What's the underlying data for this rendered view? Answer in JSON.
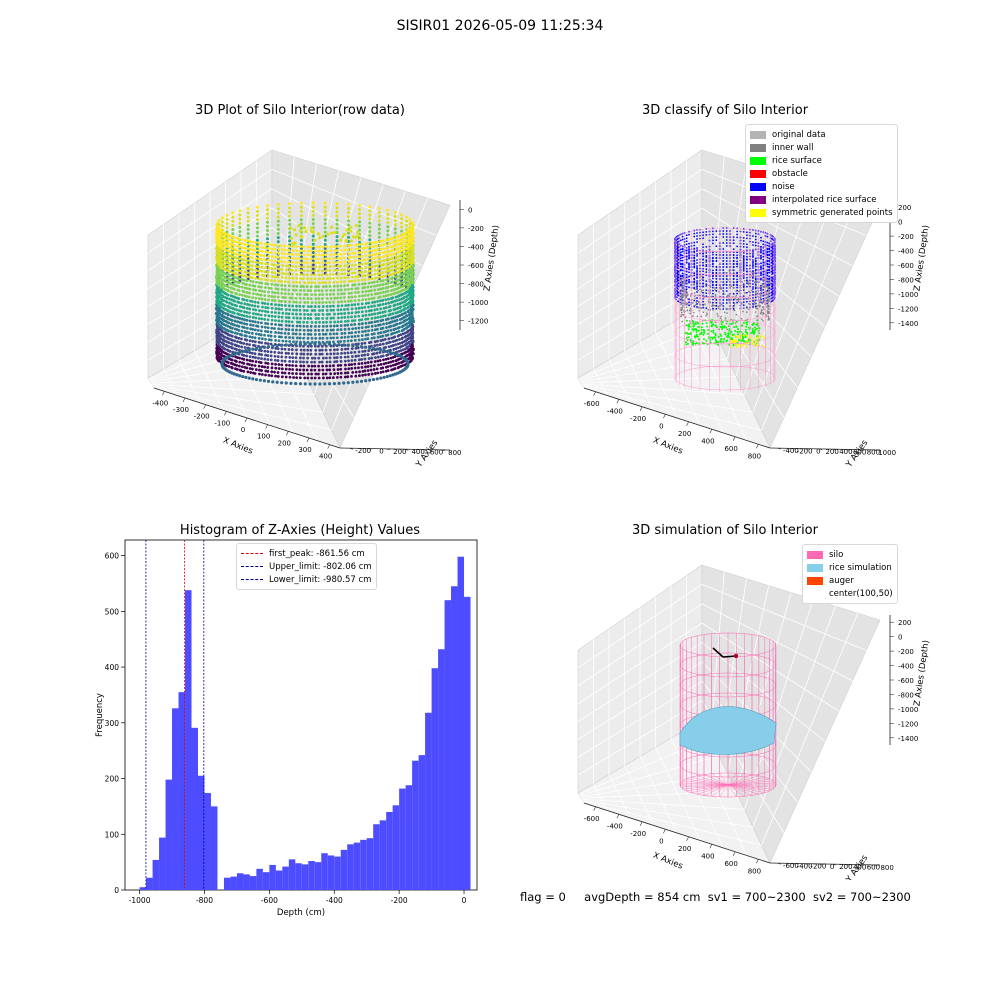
{
  "window": {
    "title": "SISIR01 2026-05-09 11:25:34"
  },
  "status_line": {
    "flag": "flag = 0",
    "avg_depth": "avgDepth = 854 cm",
    "sv1": "sv1 = 700~2300",
    "sv2": "sv2 = 700~2300"
  },
  "colors": {
    "histogram_bar": "#4d4dff",
    "first_peak_line": "#e00000",
    "limit_lines": "#00008b",
    "silo": "#ff69b4",
    "rice_simulation": "#87ceeb",
    "auger": "#ff4500",
    "original_data": "#b3b3b3",
    "inner_wall": "#808080",
    "rice_surface": "#00ff00",
    "obstacle": "#ff0000",
    "noise": "#0000ff",
    "interpolated_rice_surface": "#800080",
    "symmetric_generated_points": "#ffff00"
  },
  "chart_data": [
    {
      "type": "scatter",
      "title": "3D Plot of Silo Interior(row data)",
      "xlabel": "X Axies",
      "ylabel": "Y Axies",
      "zlabel": "Z Axies (Depth)",
      "x_ticks": [
        "-400",
        "-300",
        "-200",
        "-100",
        "0",
        "100",
        "200",
        "300",
        "400"
      ],
      "y_ticks": [
        "-200",
        "0",
        "200",
        "400",
        "600",
        "800"
      ],
      "z_ticks": [
        "0",
        "-200",
        "-400",
        "-600",
        "-800",
        "-1000",
        "-1200"
      ],
      "xlim": [
        -400,
        400
      ],
      "ylim": [
        -200,
        900
      ],
      "zlim": [
        -1300,
        0
      ],
      "colormap": "viridis"
    },
    {
      "type": "scatter",
      "title": "3D classify of Silo Interior",
      "xlabel": "X Axies",
      "ylabel": "Y Axies",
      "zlabel": "Z Axies (Depth)",
      "x_ticks": [
        "-600",
        "-400",
        "-200",
        "0",
        "200",
        "400",
        "600",
        "800"
      ],
      "y_ticks": [
        "-400",
        "-200",
        "0",
        "200",
        "400",
        "600",
        "800",
        "1000"
      ],
      "z_ticks": [
        "200",
        "0",
        "-200",
        "-400",
        "-600",
        "-800",
        "-1000",
        "-1200",
        "-1400"
      ],
      "xlim": [
        -700,
        900
      ],
      "ylim": [
        -500,
        1100
      ],
      "zlim": [
        -1500,
        250
      ],
      "legend": [
        "original data",
        "inner wall",
        "rice surface",
        "obstacle",
        "noise",
        "interpolated rice surface",
        "symmetric generated points"
      ]
    },
    {
      "type": "bar",
      "title": "Histogram of Z-Axies (Height) Values",
      "xlabel": "Depth (cm)",
      "ylabel": "Frequency",
      "xlim": [
        -1045,
        40
      ],
      "ylim": [
        0,
        628
      ],
      "x_ticks": [
        -1000,
        -800,
        -600,
        -400,
        -200,
        0
      ],
      "y_ticks": [
        0,
        100,
        200,
        300,
        400,
        500,
        600
      ],
      "bin_start": -1000,
      "bin_width": 20,
      "values": [
        5,
        22,
        54,
        94,
        198,
        326,
        355,
        538,
        291,
        205,
        174,
        150,
        0,
        22,
        24,
        30,
        28,
        25,
        38,
        32,
        45,
        35,
        42,
        55,
        48,
        46,
        52,
        50,
        66,
        62,
        60,
        72,
        82,
        85,
        90,
        93,
        118,
        125,
        140,
        152,
        182,
        188,
        232,
        242,
        318,
        398,
        432,
        520,
        545,
        598,
        526
      ],
      "vlines": [
        {
          "label": "first_peak: -861.56 cm",
          "x": -861.56,
          "color": "#e00000"
        },
        {
          "label": "Upper_limit: -802.06 cm",
          "x": -802.06,
          "color": "#00008b"
        },
        {
          "label": "Lower_limit: -980.57 cm",
          "x": -980.57,
          "color": "#00008b"
        }
      ],
      "legend_position": "upper center"
    },
    {
      "type": "surface",
      "title": "3D simulation of Silo Interior",
      "xlabel": "X Axies",
      "ylabel": "Y Axies",
      "zlabel": "Z Axies (Depth)",
      "x_ticks": [
        "-600",
        "-400",
        "-200",
        "0",
        "200",
        "400",
        "600",
        "800"
      ],
      "y_ticks": [
        "-600",
        "-400",
        "-200",
        "0",
        "200",
        "400",
        "600",
        "800"
      ],
      "z_ticks": [
        "200",
        "0",
        "-200",
        "-400",
        "-600",
        "-800",
        "-1000",
        "-1200",
        "-1400"
      ],
      "xlim": [
        -700,
        900
      ],
      "ylim": [
        -700,
        900
      ],
      "zlim": [
        -1500,
        250
      ],
      "legend": [
        "silo",
        "rice simulation",
        "auger",
        "center(100,50)"
      ]
    }
  ]
}
